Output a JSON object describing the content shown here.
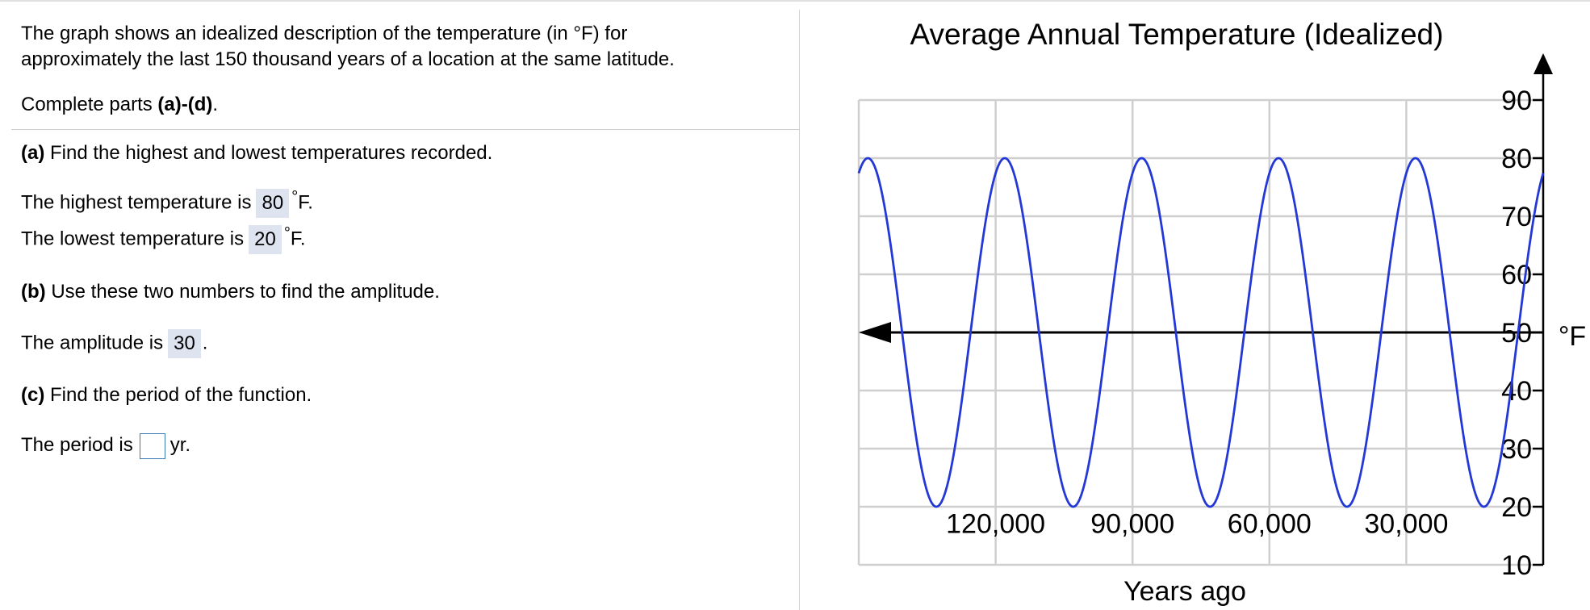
{
  "intro": {
    "line1": "The graph shows an idealized description of the temperature (in °F) for",
    "line2": "approximately the last 150 thousand years of a location at the same latitude."
  },
  "instruction": {
    "prefix": "Complete parts ",
    "bold": "(a)-(d)",
    "suffix": "."
  },
  "part_a": {
    "label": "(a)",
    "question": " Find the highest and lowest temperatures recorded.",
    "highest_prefix": "The highest temperature is",
    "highest_value": "80",
    "lowest_prefix": "The lowest temperature is",
    "lowest_value": "20",
    "unit_deg": "°",
    "unit_F": "F."
  },
  "part_b": {
    "label": "(b)",
    "question": " Use these two numbers to find the amplitude.",
    "answer_prefix": "The amplitude is",
    "answer_value": "30",
    "answer_suffix": "."
  },
  "part_c": {
    "label": "(c)",
    "question": " Find the period of the function.",
    "answer_prefix": "The period is",
    "answer_value": "",
    "answer_suffix": "yr."
  },
  "chart_data": {
    "type": "line",
    "title": "Average Annual Temperature (Idealized)",
    "xlabel": "Years ago",
    "ylabel": "°F",
    "x_ticks": [
      120000,
      90000,
      60000,
      30000
    ],
    "x_tick_labels": [
      "120,000",
      "90,000",
      "60,000",
      "30,000"
    ],
    "y_ticks": [
      10,
      20,
      30,
      40,
      50,
      60,
      70,
      80,
      90
    ],
    "xlim": [
      150000,
      0
    ],
    "ylim": [
      10,
      90
    ],
    "grid": true,
    "series": [
      {
        "color": "#2438d6",
        "function": "50 + 30*cos(2*pi*(x - 118000)/30000)",
        "amplitude": 30,
        "midline": 50,
        "max": 80,
        "min": 20,
        "period_years": 30000
      }
    ],
    "midline_arrow_y": 50
  }
}
